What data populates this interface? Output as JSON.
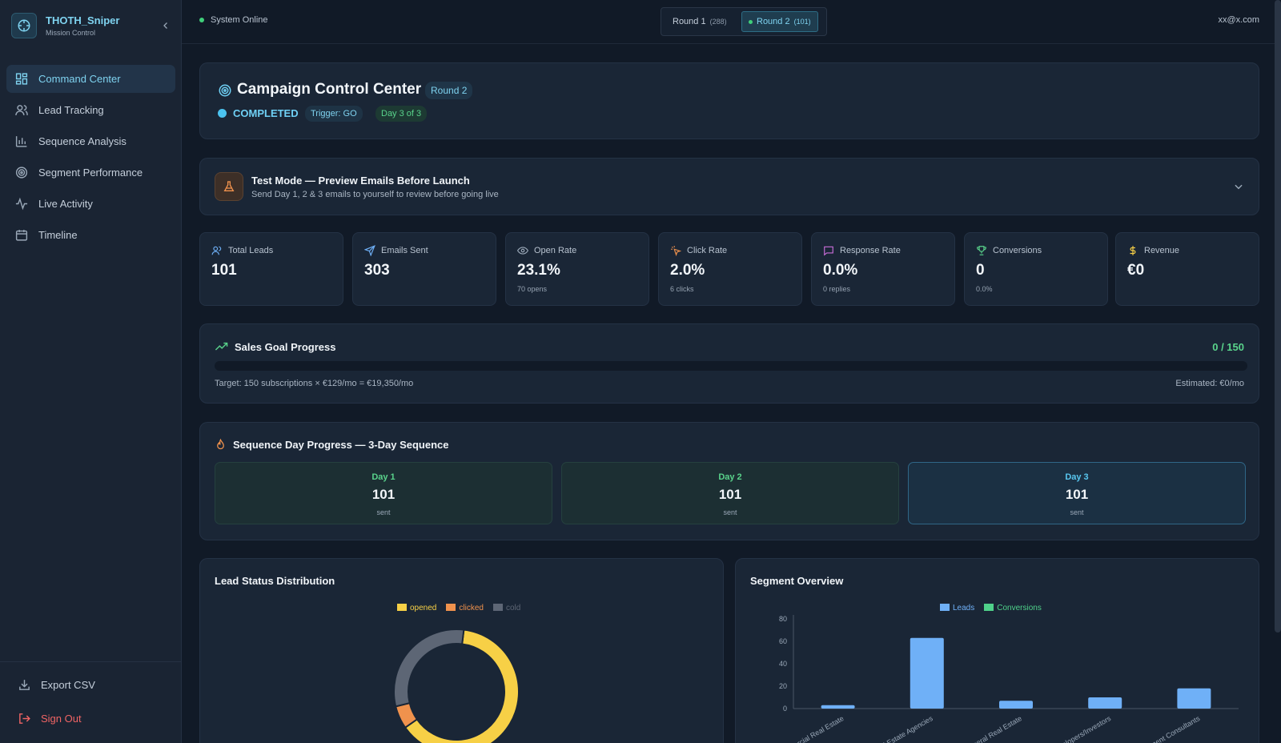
{
  "brand": {
    "title": "THOTH_Sniper",
    "subtitle": "Mission Control"
  },
  "nav": [
    {
      "label": "Command Center",
      "icon": "grid-icon",
      "active": true
    },
    {
      "label": "Lead Tracking",
      "icon": "users-icon"
    },
    {
      "label": "Sequence Analysis",
      "icon": "bar-chart-icon"
    },
    {
      "label": "Segment Performance",
      "icon": "target-icon"
    },
    {
      "label": "Live Activity",
      "icon": "activity-icon"
    },
    {
      "label": "Timeline",
      "icon": "calendar-icon"
    }
  ],
  "sidebar_bottom": {
    "export": "Export CSV",
    "signout": "Sign Out"
  },
  "topbar": {
    "status": "System Online",
    "rounds": [
      {
        "label": "Round 1",
        "count": "(288)"
      },
      {
        "label": "Round 2",
        "count": "(101)",
        "active": true
      }
    ],
    "user": "xx@x.com"
  },
  "header": {
    "title": "Campaign Control Center",
    "round_badge": "Round 2",
    "status": "COMPLETED",
    "trigger": "Trigger: GO",
    "day": "Day 3 of 3"
  },
  "test_mode": {
    "title": "Test Mode — Preview Emails Before Launch",
    "subtitle": "Send Day 1, 2 & 3 emails to yourself to review before going live"
  },
  "metrics": [
    {
      "label": "Total Leads",
      "value": "101",
      "sub": "",
      "icon": "users-icon"
    },
    {
      "label": "Emails Sent",
      "value": "303",
      "sub": "",
      "icon": "send-icon"
    },
    {
      "label": "Open Rate",
      "value": "23.1%",
      "sub": "70 opens",
      "icon": "eye-icon"
    },
    {
      "label": "Click Rate",
      "value": "2.0%",
      "sub": "6 clicks",
      "icon": "click-icon"
    },
    {
      "label": "Response Rate",
      "value": "0.0%",
      "sub": "0 replies",
      "icon": "message-icon"
    },
    {
      "label": "Conversions",
      "value": "0",
      "sub": "0.0%",
      "icon": "trophy-icon"
    },
    {
      "label": "Revenue",
      "value": "€0",
      "sub": "",
      "icon": "dollar-icon"
    }
  ],
  "sales_goal": {
    "title": "Sales Goal Progress",
    "progress_text": "0 / 150",
    "progress_fraction": 0,
    "target_text": "Target: 150 subscriptions × €129/mo = €19,350/mo",
    "estimated_text": "Estimated: €0/mo"
  },
  "sequence": {
    "title": "Sequence Day Progress — 3-Day Sequence",
    "days": [
      {
        "label": "Day 1",
        "value": "101",
        "sub": "sent"
      },
      {
        "label": "Day 2",
        "value": "101",
        "sub": "sent"
      },
      {
        "label": "Day 3",
        "value": "101",
        "sub": "sent",
        "active": true
      }
    ]
  },
  "lead_status": {
    "title": "Lead Status Distribution",
    "legend": [
      {
        "label": "opened",
        "color": "#f7d046"
      },
      {
        "label": "clicked",
        "color": "#f0924d"
      },
      {
        "label": "cold",
        "color": "#5d6675"
      }
    ]
  },
  "segment": {
    "title": "Segment Overview",
    "legend": [
      {
        "label": "Leads",
        "color": "#6fb0f7"
      },
      {
        "label": "Conversions",
        "color": "#4fd18a"
      }
    ]
  },
  "chart_data": [
    {
      "type": "pie",
      "title": "Lead Status Distribution",
      "categories": [
        "opened",
        "clicked",
        "cold"
      ],
      "values": [
        64,
        6,
        31
      ]
    },
    {
      "type": "bar",
      "title": "Segment Overview",
      "categories": [
        "Commercial Real Estate",
        "Real Estate Agencies",
        "General Real Estate",
        "Developers/Investors",
        "Investment Consultants"
      ],
      "series": [
        {
          "name": "Leads",
          "values": [
            3,
            63,
            7,
            10,
            18
          ]
        },
        {
          "name": "Conversions",
          "values": [
            0,
            0,
            0,
            0,
            0
          ]
        }
      ],
      "yticks": [
        "80",
        "60",
        "40",
        "20",
        "0"
      ],
      "ylim": [
        0,
        80
      ]
    }
  ]
}
